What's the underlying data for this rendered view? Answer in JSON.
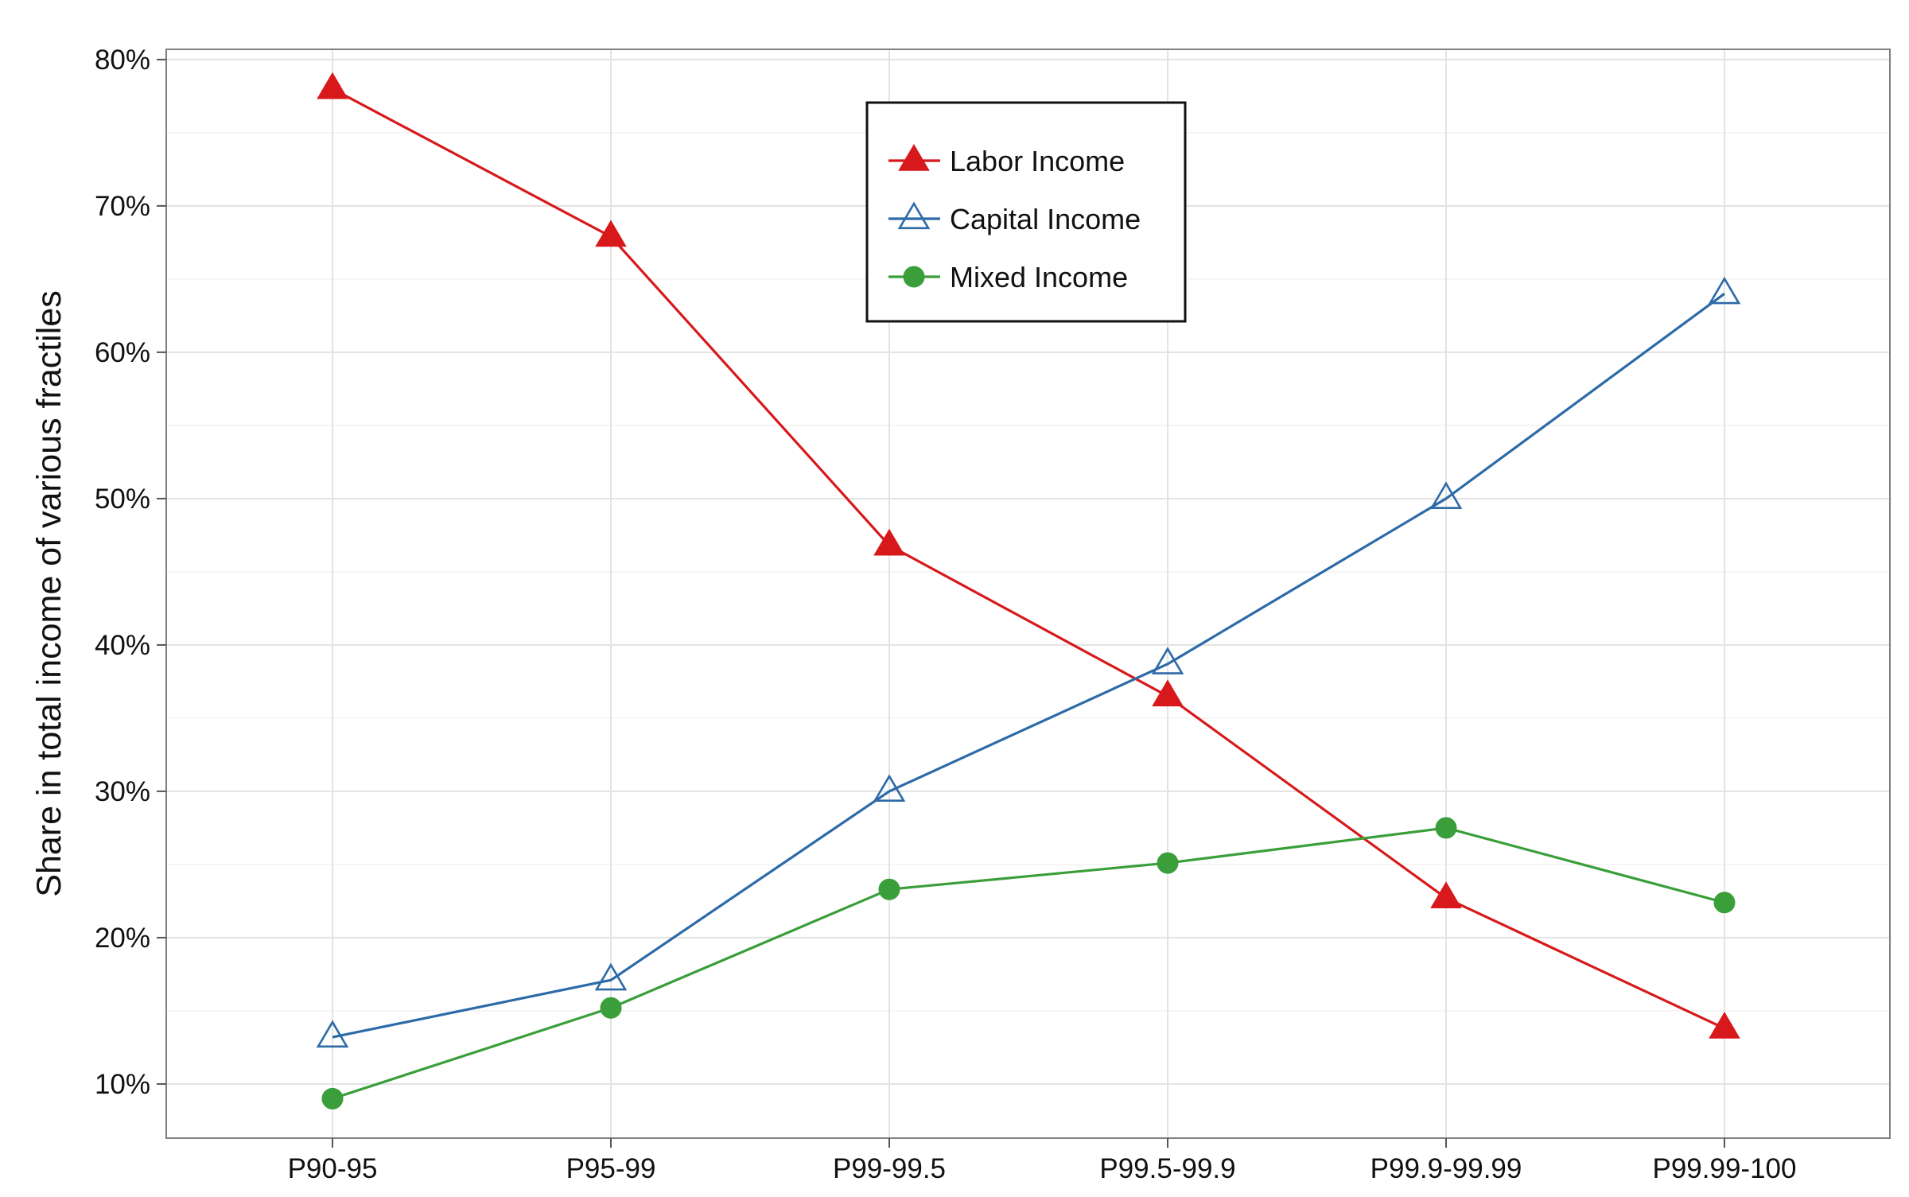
{
  "chart_data": {
    "type": "line",
    "title": "",
    "xlabel": "",
    "ylabel": "Share in total income of various fractiles",
    "categories": [
      "P90-95",
      "P95-99",
      "P99-99.5",
      "P99.5-99.9",
      "P99.9-99.99",
      "P99.99-100"
    ],
    "ylim": [
      0.063,
      0.807
    ],
    "yticks": [
      0.1,
      0.2,
      0.3,
      0.4,
      0.5,
      0.6,
      0.7,
      0.8
    ],
    "ytick_labels": [
      "10%",
      "20%",
      "30%",
      "40%",
      "50%",
      "60%",
      "70%",
      "80%"
    ],
    "grid": true,
    "legend_position": "top-center",
    "series": [
      {
        "name": "Labor Income",
        "color": "#d7191c",
        "marker": "filled-triangle",
        "values": [
          0.78,
          0.679,
          0.468,
          0.365,
          0.227,
          0.138
        ]
      },
      {
        "name": "Capital Income",
        "color": "#2c6aa8",
        "marker": "open-triangle",
        "values": [
          0.132,
          0.171,
          0.3,
          0.387,
          0.5,
          0.64
        ]
      },
      {
        "name": "Mixed Income",
        "color": "#3a9e3a",
        "marker": "filled-circle",
        "values": [
          0.09,
          0.152,
          0.233,
          0.251,
          0.275,
          0.224
        ]
      }
    ]
  }
}
